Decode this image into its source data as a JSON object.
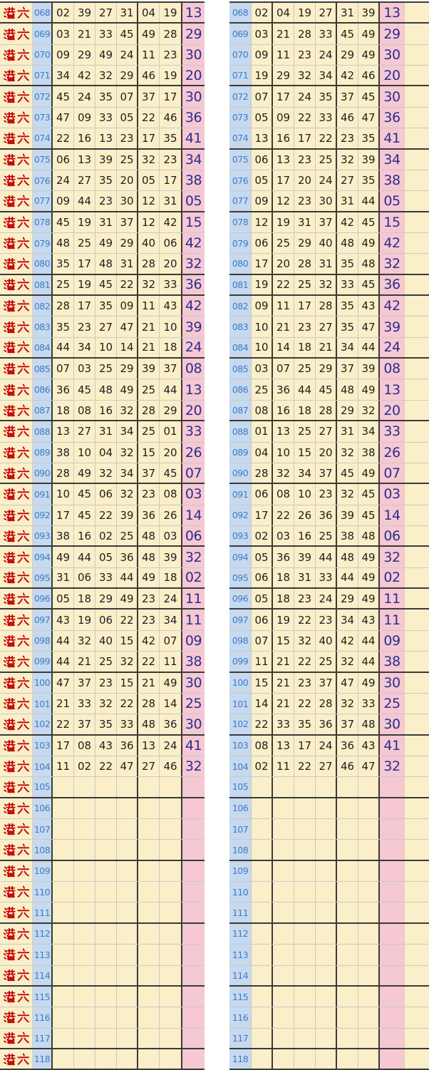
{
  "row_label": "港六",
  "colors": {
    "cream_bg": "#faefc8",
    "issue_bg": "#c6d9ef",
    "bonus_bg": "#f5c8d3",
    "label_red": "#c40000",
    "issue_blue": "#3e7cc4",
    "number_dark": "#1e1e1e",
    "bonus_navy": "#2b2e8c",
    "grid_dark": "#3a3a3a",
    "grid_light": "#c9c9c9"
  },
  "group_end_issues": [
    "068",
    "071",
    "074",
    "077",
    "080",
    "081",
    "084",
    "087",
    "090",
    "093",
    "095",
    "096",
    "099",
    "102",
    "105",
    "108",
    "111",
    "114",
    "117",
    "118"
  ],
  "left_table": {
    "rows": [
      {
        "issue": "068",
        "nums": [
          "02",
          "39",
          "27",
          "31",
          "04",
          "19"
        ],
        "bonus": "13"
      },
      {
        "issue": "069",
        "nums": [
          "03",
          "21",
          "33",
          "45",
          "49",
          "28"
        ],
        "bonus": "29"
      },
      {
        "issue": "070",
        "nums": [
          "09",
          "29",
          "49",
          "24",
          "11",
          "23"
        ],
        "bonus": "30"
      },
      {
        "issue": "071",
        "nums": [
          "34",
          "42",
          "32",
          "29",
          "46",
          "19"
        ],
        "bonus": "20"
      },
      {
        "issue": "072",
        "nums": [
          "45",
          "24",
          "35",
          "07",
          "37",
          "17"
        ],
        "bonus": "30"
      },
      {
        "issue": "073",
        "nums": [
          "47",
          "09",
          "33",
          "05",
          "22",
          "46"
        ],
        "bonus": "36"
      },
      {
        "issue": "074",
        "nums": [
          "22",
          "16",
          "13",
          "23",
          "17",
          "35"
        ],
        "bonus": "41"
      },
      {
        "issue": "075",
        "nums": [
          "06",
          "13",
          "39",
          "25",
          "32",
          "23"
        ],
        "bonus": "34"
      },
      {
        "issue": "076",
        "nums": [
          "24",
          "27",
          "35",
          "20",
          "05",
          "17"
        ],
        "bonus": "38"
      },
      {
        "issue": "077",
        "nums": [
          "09",
          "44",
          "23",
          "30",
          "12",
          "31"
        ],
        "bonus": "05"
      },
      {
        "issue": "078",
        "nums": [
          "45",
          "19",
          "31",
          "37",
          "12",
          "42"
        ],
        "bonus": "15"
      },
      {
        "issue": "079",
        "nums": [
          "48",
          "25",
          "49",
          "29",
          "40",
          "06"
        ],
        "bonus": "42"
      },
      {
        "issue": "080",
        "nums": [
          "35",
          "17",
          "48",
          "31",
          "28",
          "20"
        ],
        "bonus": "32"
      },
      {
        "issue": "081",
        "nums": [
          "25",
          "19",
          "45",
          "22",
          "32",
          "33"
        ],
        "bonus": "36"
      },
      {
        "issue": "082",
        "nums": [
          "28",
          "17",
          "35",
          "09",
          "11",
          "43"
        ],
        "bonus": "42"
      },
      {
        "issue": "083",
        "nums": [
          "35",
          "23",
          "27",
          "47",
          "21",
          "10"
        ],
        "bonus": "39"
      },
      {
        "issue": "084",
        "nums": [
          "44",
          "34",
          "10",
          "14",
          "21",
          "18"
        ],
        "bonus": "24"
      },
      {
        "issue": "085",
        "nums": [
          "07",
          "03",
          "25",
          "29",
          "39",
          "37"
        ],
        "bonus": "08"
      },
      {
        "issue": "086",
        "nums": [
          "36",
          "45",
          "48",
          "49",
          "25",
          "44"
        ],
        "bonus": "13"
      },
      {
        "issue": "087",
        "nums": [
          "18",
          "08",
          "16",
          "32",
          "28",
          "29"
        ],
        "bonus": "20"
      },
      {
        "issue": "088",
        "nums": [
          "13",
          "27",
          "31",
          "34",
          "25",
          "01"
        ],
        "bonus": "33"
      },
      {
        "issue": "089",
        "nums": [
          "38",
          "10",
          "04",
          "32",
          "15",
          "20"
        ],
        "bonus": "26"
      },
      {
        "issue": "090",
        "nums": [
          "28",
          "49",
          "32",
          "34",
          "37",
          "45"
        ],
        "bonus": "07"
      },
      {
        "issue": "091",
        "nums": [
          "10",
          "45",
          "06",
          "32",
          "23",
          "08"
        ],
        "bonus": "03"
      },
      {
        "issue": "092",
        "nums": [
          "17",
          "45",
          "22",
          "39",
          "36",
          "26"
        ],
        "bonus": "14"
      },
      {
        "issue": "093",
        "nums": [
          "38",
          "16",
          "02",
          "25",
          "48",
          "03"
        ],
        "bonus": "06"
      },
      {
        "issue": "094",
        "nums": [
          "49",
          "44",
          "05",
          "36",
          "48",
          "39"
        ],
        "bonus": "32"
      },
      {
        "issue": "095",
        "nums": [
          "31",
          "06",
          "33",
          "44",
          "49",
          "18"
        ],
        "bonus": "02"
      },
      {
        "issue": "096",
        "nums": [
          "05",
          "18",
          "29",
          "49",
          "23",
          "24"
        ],
        "bonus": "11"
      },
      {
        "issue": "097",
        "nums": [
          "43",
          "19",
          "06",
          "22",
          "23",
          "34"
        ],
        "bonus": "11"
      },
      {
        "issue": "098",
        "nums": [
          "44",
          "32",
          "40",
          "15",
          "42",
          "07"
        ],
        "bonus": "09"
      },
      {
        "issue": "099",
        "nums": [
          "44",
          "21",
          "25",
          "32",
          "22",
          "11"
        ],
        "bonus": "38"
      },
      {
        "issue": "100",
        "nums": [
          "47",
          "37",
          "23",
          "15",
          "21",
          "49"
        ],
        "bonus": "30"
      },
      {
        "issue": "101",
        "nums": [
          "21",
          "33",
          "32",
          "22",
          "28",
          "14"
        ],
        "bonus": "25"
      },
      {
        "issue": "102",
        "nums": [
          "22",
          "37",
          "35",
          "33",
          "48",
          "36"
        ],
        "bonus": "30"
      },
      {
        "issue": "103",
        "nums": [
          "17",
          "08",
          "43",
          "36",
          "13",
          "24"
        ],
        "bonus": "41"
      },
      {
        "issue": "104",
        "nums": [
          "11",
          "02",
          "22",
          "47",
          "27",
          "46"
        ],
        "bonus": "32"
      },
      {
        "issue": "105",
        "nums": [
          "",
          "",
          "",
          "",
          "",
          ""
        ],
        "bonus": ""
      },
      {
        "issue": "106",
        "nums": [
          "",
          "",
          "",
          "",
          "",
          ""
        ],
        "bonus": ""
      },
      {
        "issue": "107",
        "nums": [
          "",
          "",
          "",
          "",
          "",
          ""
        ],
        "bonus": ""
      },
      {
        "issue": "108",
        "nums": [
          "",
          "",
          "",
          "",
          "",
          ""
        ],
        "bonus": ""
      },
      {
        "issue": "109",
        "nums": [
          "",
          "",
          "",
          "",
          "",
          ""
        ],
        "bonus": ""
      },
      {
        "issue": "110",
        "nums": [
          "",
          "",
          "",
          "",
          "",
          ""
        ],
        "bonus": ""
      },
      {
        "issue": "111",
        "nums": [
          "",
          "",
          "",
          "",
          "",
          ""
        ],
        "bonus": ""
      },
      {
        "issue": "112",
        "nums": [
          "",
          "",
          "",
          "",
          "",
          ""
        ],
        "bonus": ""
      },
      {
        "issue": "113",
        "nums": [
          "",
          "",
          "",
          "",
          "",
          ""
        ],
        "bonus": ""
      },
      {
        "issue": "114",
        "nums": [
          "",
          "",
          "",
          "",
          "",
          ""
        ],
        "bonus": ""
      },
      {
        "issue": "115",
        "nums": [
          "",
          "",
          "",
          "",
          "",
          ""
        ],
        "bonus": ""
      },
      {
        "issue": "116",
        "nums": [
          "",
          "",
          "",
          "",
          "",
          ""
        ],
        "bonus": ""
      },
      {
        "issue": "117",
        "nums": [
          "",
          "",
          "",
          "",
          "",
          ""
        ],
        "bonus": ""
      },
      {
        "issue": "118",
        "nums": [
          "",
          "",
          "",
          "",
          "",
          ""
        ],
        "bonus": ""
      }
    ]
  },
  "right_table": {
    "rows": [
      {
        "issue": "068",
        "nums": [
          "02",
          "04",
          "19",
          "27",
          "31",
          "39"
        ],
        "bonus": "13"
      },
      {
        "issue": "069",
        "nums": [
          "03",
          "21",
          "28",
          "33",
          "45",
          "49"
        ],
        "bonus": "29"
      },
      {
        "issue": "070",
        "nums": [
          "09",
          "11",
          "23",
          "24",
          "29",
          "49"
        ],
        "bonus": "30"
      },
      {
        "issue": "071",
        "nums": [
          "19",
          "29",
          "32",
          "34",
          "42",
          "46"
        ],
        "bonus": "20"
      },
      {
        "issue": "072",
        "nums": [
          "07",
          "17",
          "24",
          "35",
          "37",
          "45"
        ],
        "bonus": "30"
      },
      {
        "issue": "073",
        "nums": [
          "05",
          "09",
          "22",
          "33",
          "46",
          "47"
        ],
        "bonus": "36"
      },
      {
        "issue": "074",
        "nums": [
          "13",
          "16",
          "17",
          "22",
          "23",
          "35"
        ],
        "bonus": "41"
      },
      {
        "issue": "075",
        "nums": [
          "06",
          "13",
          "23",
          "25",
          "32",
          "39"
        ],
        "bonus": "34"
      },
      {
        "issue": "076",
        "nums": [
          "05",
          "17",
          "20",
          "24",
          "27",
          "35"
        ],
        "bonus": "38"
      },
      {
        "issue": "077",
        "nums": [
          "09",
          "12",
          "23",
          "30",
          "31",
          "44"
        ],
        "bonus": "05"
      },
      {
        "issue": "078",
        "nums": [
          "12",
          "19",
          "31",
          "37",
          "42",
          "45"
        ],
        "bonus": "15"
      },
      {
        "issue": "079",
        "nums": [
          "06",
          "25",
          "29",
          "40",
          "48",
          "49"
        ],
        "bonus": "42"
      },
      {
        "issue": "080",
        "nums": [
          "17",
          "20",
          "28",
          "31",
          "35",
          "48"
        ],
        "bonus": "32"
      },
      {
        "issue": "081",
        "nums": [
          "19",
          "22",
          "25",
          "32",
          "33",
          "45"
        ],
        "bonus": "36"
      },
      {
        "issue": "082",
        "nums": [
          "09",
          "11",
          "17",
          "28",
          "35",
          "43"
        ],
        "bonus": "42"
      },
      {
        "issue": "083",
        "nums": [
          "10",
          "21",
          "23",
          "27",
          "35",
          "47"
        ],
        "bonus": "39"
      },
      {
        "issue": "084",
        "nums": [
          "10",
          "14",
          "18",
          "21",
          "34",
          "44"
        ],
        "bonus": "24"
      },
      {
        "issue": "085",
        "nums": [
          "03",
          "07",
          "25",
          "29",
          "37",
          "39"
        ],
        "bonus": "08"
      },
      {
        "issue": "086",
        "nums": [
          "25",
          "36",
          "44",
          "45",
          "48",
          "49"
        ],
        "bonus": "13"
      },
      {
        "issue": "087",
        "nums": [
          "08",
          "16",
          "18",
          "28",
          "29",
          "32"
        ],
        "bonus": "20"
      },
      {
        "issue": "088",
        "nums": [
          "01",
          "13",
          "25",
          "27",
          "31",
          "34"
        ],
        "bonus": "33"
      },
      {
        "issue": "089",
        "nums": [
          "04",
          "10",
          "15",
          "20",
          "32",
          "38"
        ],
        "bonus": "26"
      },
      {
        "issue": "090",
        "nums": [
          "28",
          "32",
          "34",
          "37",
          "45",
          "49"
        ],
        "bonus": "07"
      },
      {
        "issue": "091",
        "nums": [
          "06",
          "08",
          "10",
          "23",
          "32",
          "45"
        ],
        "bonus": "03"
      },
      {
        "issue": "092",
        "nums": [
          "17",
          "22",
          "26",
          "36",
          "39",
          "45"
        ],
        "bonus": "14"
      },
      {
        "issue": "093",
        "nums": [
          "02",
          "03",
          "16",
          "25",
          "38",
          "48"
        ],
        "bonus": "06"
      },
      {
        "issue": "094",
        "nums": [
          "05",
          "36",
          "39",
          "44",
          "48",
          "49"
        ],
        "bonus": "32"
      },
      {
        "issue": "095",
        "nums": [
          "06",
          "18",
          "31",
          "33",
          "44",
          "49"
        ],
        "bonus": "02"
      },
      {
        "issue": "096",
        "nums": [
          "05",
          "18",
          "23",
          "24",
          "29",
          "49"
        ],
        "bonus": "11"
      },
      {
        "issue": "097",
        "nums": [
          "06",
          "19",
          "22",
          "23",
          "34",
          "43"
        ],
        "bonus": "11"
      },
      {
        "issue": "098",
        "nums": [
          "07",
          "15",
          "32",
          "40",
          "42",
          "44"
        ],
        "bonus": "09"
      },
      {
        "issue": "099",
        "nums": [
          "11",
          "21",
          "22",
          "25",
          "32",
          "44"
        ],
        "bonus": "38"
      },
      {
        "issue": "100",
        "nums": [
          "15",
          "21",
          "23",
          "37",
          "47",
          "49"
        ],
        "bonus": "30"
      },
      {
        "issue": "101",
        "nums": [
          "14",
          "21",
          "22",
          "28",
          "32",
          "33"
        ],
        "bonus": "25"
      },
      {
        "issue": "102",
        "nums": [
          "22",
          "33",
          "35",
          "36",
          "37",
          "48"
        ],
        "bonus": "30"
      },
      {
        "issue": "103",
        "nums": [
          "08",
          "13",
          "17",
          "24",
          "36",
          "43"
        ],
        "bonus": "41"
      },
      {
        "issue": "104",
        "nums": [
          "02",
          "11",
          "22",
          "27",
          "46",
          "47"
        ],
        "bonus": "32"
      },
      {
        "issue": "105",
        "nums": [
          "",
          "",
          "",
          "",
          "",
          ""
        ],
        "bonus": ""
      },
      {
        "issue": "106",
        "nums": [
          "",
          "",
          "",
          "",
          "",
          ""
        ],
        "bonus": ""
      },
      {
        "issue": "107",
        "nums": [
          "",
          "",
          "",
          "",
          "",
          ""
        ],
        "bonus": ""
      },
      {
        "issue": "108",
        "nums": [
          "",
          "",
          "",
          "",
          "",
          ""
        ],
        "bonus": ""
      },
      {
        "issue": "109",
        "nums": [
          "",
          "",
          "",
          "",
          "",
          ""
        ],
        "bonus": ""
      },
      {
        "issue": "110",
        "nums": [
          "",
          "",
          "",
          "",
          "",
          ""
        ],
        "bonus": ""
      },
      {
        "issue": "111",
        "nums": [
          "",
          "",
          "",
          "",
          "",
          ""
        ],
        "bonus": ""
      },
      {
        "issue": "112",
        "nums": [
          "",
          "",
          "",
          "",
          "",
          ""
        ],
        "bonus": ""
      },
      {
        "issue": "113",
        "nums": [
          "",
          "",
          "",
          "",
          "",
          ""
        ],
        "bonus": ""
      },
      {
        "issue": "114",
        "nums": [
          "",
          "",
          "",
          "",
          "",
          ""
        ],
        "bonus": ""
      },
      {
        "issue": "115",
        "nums": [
          "",
          "",
          "",
          "",
          "",
          ""
        ],
        "bonus": ""
      },
      {
        "issue": "116",
        "nums": [
          "",
          "",
          "",
          "",
          "",
          ""
        ],
        "bonus": ""
      },
      {
        "issue": "117",
        "nums": [
          "",
          "",
          "",
          "",
          "",
          ""
        ],
        "bonus": ""
      },
      {
        "issue": "118",
        "nums": [
          "",
          "",
          "",
          "",
          "",
          ""
        ],
        "bonus": ""
      }
    ]
  }
}
